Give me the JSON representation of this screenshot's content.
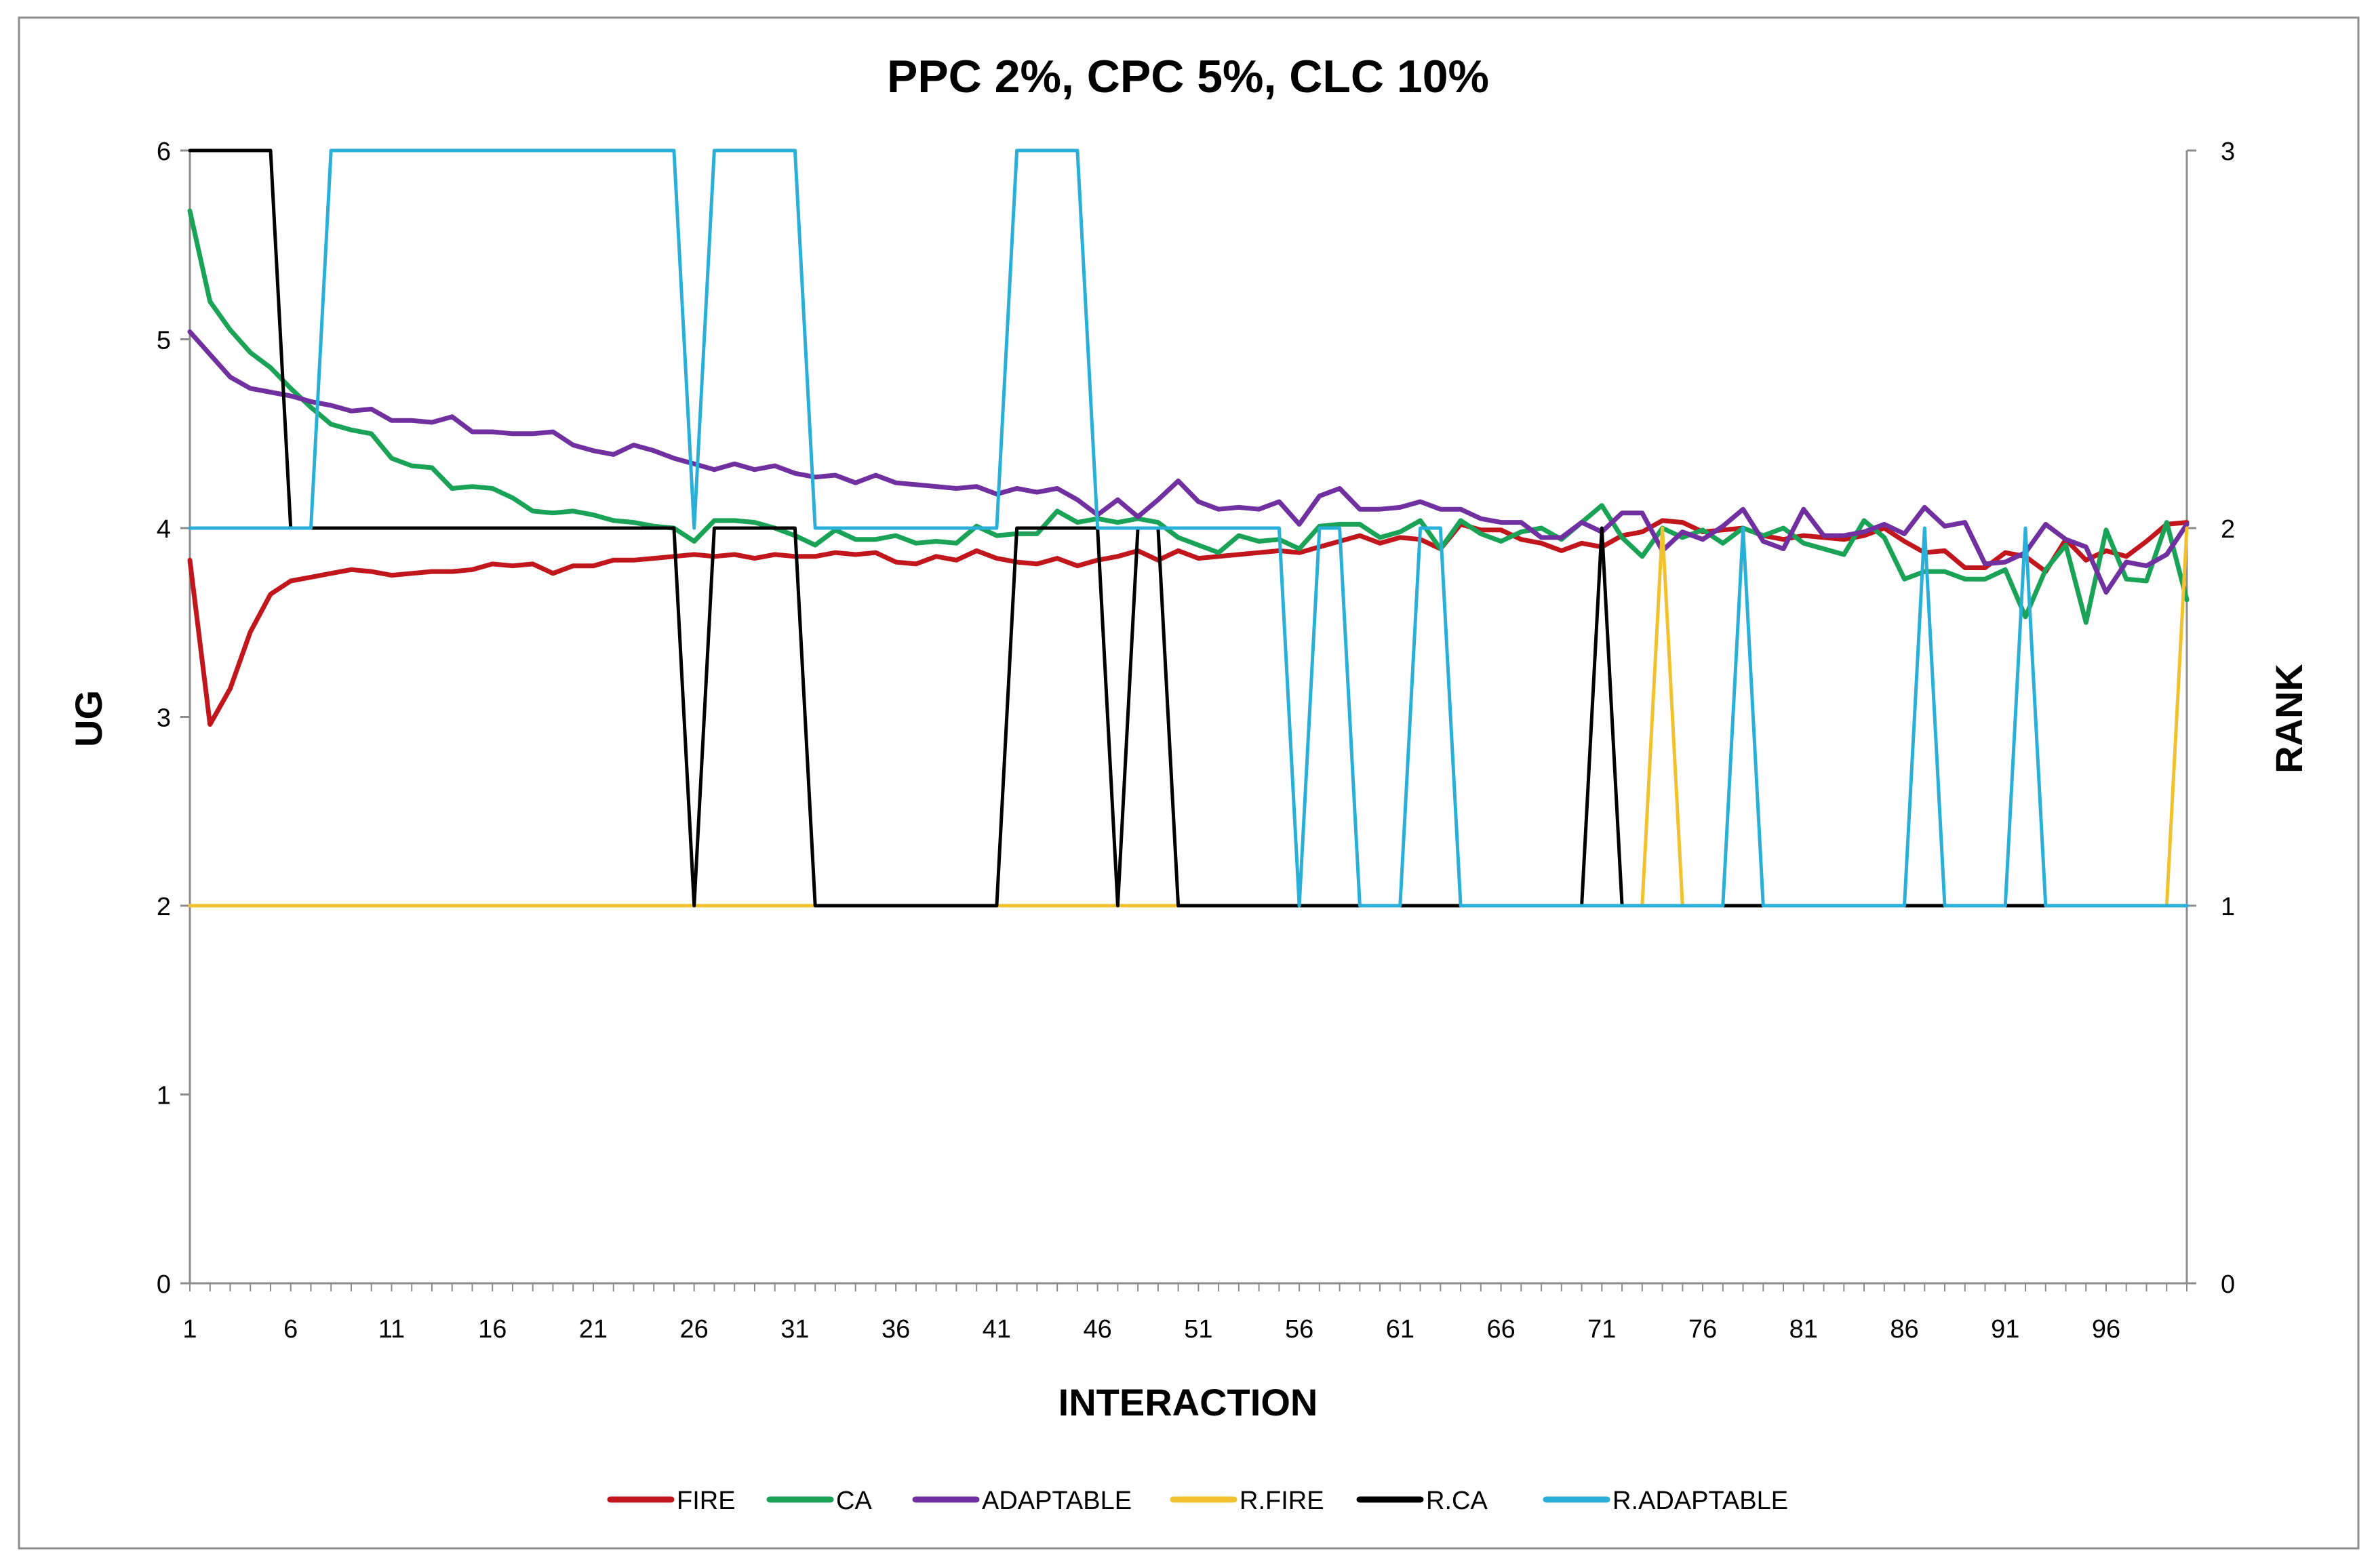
{
  "chart_data": {
    "type": "line",
    "title": "PPC 2%, CPC 5%, CLC 10%",
    "xlabel": "INTERACTION",
    "ylabel": "UG",
    "y2label": "RANK",
    "xlim": [
      1,
      100
    ],
    "ylim": [
      0,
      6
    ],
    "y2lim": [
      0,
      3
    ],
    "yticks": [
      "0",
      "1",
      "2",
      "3",
      "4",
      "5",
      "6"
    ],
    "y2ticks": [
      "0",
      "1",
      "2",
      "3"
    ],
    "xticks": [
      "1",
      "6",
      "11",
      "16",
      "21",
      "26",
      "31",
      "36",
      "41",
      "46",
      "51",
      "56",
      "61",
      "66",
      "71",
      "76",
      "81",
      "86",
      "91",
      "96"
    ],
    "legend_position": "bottom",
    "series": [
      {
        "name": "FIRE",
        "axis": "left",
        "color": "#c0161c",
        "values": [
          3.83,
          2.96,
          3.15,
          3.45,
          3.65,
          3.72,
          3.74,
          3.76,
          3.78,
          3.77,
          3.75,
          3.76,
          3.77,
          3.77,
          3.78,
          3.81,
          3.8,
          3.81,
          3.76,
          3.8,
          3.8,
          3.83,
          3.83,
          3.84,
          3.85,
          3.86,
          3.85,
          3.86,
          3.84,
          3.86,
          3.85,
          3.85,
          3.87,
          3.86,
          3.87,
          3.82,
          3.81,
          3.85,
          3.83,
          3.88,
          3.84,
          3.82,
          3.81,
          3.84,
          3.8,
          3.83,
          3.85,
          3.88,
          3.83,
          3.88,
          3.84,
          3.85,
          3.86,
          3.87,
          3.88,
          3.87,
          3.9,
          3.93,
          3.96,
          3.92,
          3.95,
          3.94,
          3.89,
          4.02,
          3.99,
          3.99,
          3.94,
          3.92,
          3.88,
          3.92,
          3.9,
          3.96,
          3.98,
          4.04,
          4.03,
          3.98,
          3.99,
          4.0,
          3.96,
          3.94,
          3.96,
          3.95,
          3.94,
          3.96,
          4.0,
          3.93,
          3.87,
          3.88,
          3.79,
          3.79,
          3.87,
          3.85,
          3.77,
          3.94,
          3.83,
          3.88,
          3.85,
          3.93,
          4.02,
          4.03
        ]
      },
      {
        "name": "CA",
        "axis": "left",
        "color": "#1aa357",
        "values": [
          5.68,
          5.2,
          5.05,
          4.93,
          4.85,
          4.74,
          4.64,
          4.55,
          4.52,
          4.5,
          4.37,
          4.33,
          4.32,
          4.21,
          4.22,
          4.21,
          4.16,
          4.09,
          4.08,
          4.09,
          4.07,
          4.04,
          4.03,
          4.01,
          4.0,
          3.93,
          4.04,
          4.04,
          4.03,
          4.0,
          3.96,
          3.91,
          3.99,
          3.94,
          3.94,
          3.96,
          3.92,
          3.93,
          3.92,
          4.01,
          3.96,
          3.97,
          3.97,
          4.09,
          4.03,
          4.05,
          4.03,
          4.05,
          4.03,
          3.95,
          3.91,
          3.87,
          3.96,
          3.93,
          3.94,
          3.89,
          4.01,
          4.02,
          4.02,
          3.95,
          3.98,
          4.04,
          3.89,
          4.04,
          3.97,
          3.93,
          3.98,
          4.0,
          3.94,
          4.03,
          4.12,
          3.95,
          3.85,
          4.0,
          3.95,
          3.99,
          3.92,
          4.0,
          3.96,
          4.0,
          3.92,
          3.89,
          3.86,
          4.04,
          3.95,
          3.73,
          3.77,
          3.77,
          3.73,
          3.73,
          3.78,
          3.53,
          3.78,
          3.91,
          3.5,
          3.99,
          3.73,
          3.72,
          4.03,
          3.62
        ]
      },
      {
        "name": "ADAPTABLE",
        "axis": "left",
        "color": "#7030a0",
        "values": [
          5.04,
          4.92,
          4.8,
          4.74,
          4.72,
          4.7,
          4.67,
          4.65,
          4.62,
          4.63,
          4.57,
          4.57,
          4.56,
          4.59,
          4.51,
          4.51,
          4.5,
          4.5,
          4.51,
          4.44,
          4.41,
          4.39,
          4.44,
          4.41,
          4.37,
          4.34,
          4.31,
          4.34,
          4.31,
          4.33,
          4.29,
          4.27,
          4.28,
          4.24,
          4.28,
          4.24,
          4.23,
          4.22,
          4.21,
          4.22,
          4.18,
          4.21,
          4.19,
          4.21,
          4.15,
          4.07,
          4.15,
          4.06,
          4.15,
          4.25,
          4.14,
          4.1,
          4.11,
          4.1,
          4.14,
          4.02,
          4.17,
          4.21,
          4.1,
          4.1,
          4.11,
          4.14,
          4.1,
          4.1,
          4.05,
          4.03,
          4.03,
          3.95,
          3.95,
          4.03,
          3.98,
          4.08,
          4.08,
          3.88,
          3.98,
          3.94,
          4.01,
          4.1,
          3.93,
          3.89,
          4.1,
          3.96,
          3.96,
          3.98,
          4.02,
          3.97,
          4.11,
          4.01,
          4.03,
          3.81,
          3.82,
          3.87,
          4.02,
          3.94,
          3.9,
          3.66,
          3.82,
          3.8,
          3.86,
          4.02
        ]
      },
      {
        "name": "R.FIRE",
        "axis": "right",
        "color": "#f2c12e",
        "values": [
          1,
          1,
          1,
          1,
          1,
          1,
          1,
          1,
          1,
          1,
          1,
          1,
          1,
          1,
          1,
          1,
          1,
          1,
          1,
          1,
          1,
          1,
          1,
          1,
          1,
          1,
          1,
          1,
          1,
          1,
          1,
          1,
          1,
          1,
          1,
          1,
          1,
          1,
          1,
          1,
          1,
          1,
          1,
          1,
          1,
          1,
          1,
          1,
          1,
          1,
          1,
          1,
          1,
          1,
          1,
          1,
          1,
          1,
          1,
          1,
          1,
          1,
          1,
          1,
          1,
          1,
          1,
          1,
          1,
          1,
          1,
          1,
          1,
          2,
          1,
          1,
          1,
          1,
          1,
          1,
          1,
          1,
          1,
          1,
          1,
          1,
          1,
          1,
          1,
          1,
          1,
          1,
          1,
          1,
          1,
          1,
          1,
          1,
          1,
          2
        ]
      },
      {
        "name": "R.CA",
        "axis": "right",
        "color": "#000000",
        "values": [
          3,
          3,
          3,
          3,
          3,
          2,
          2,
          2,
          2,
          2,
          2,
          2,
          2,
          2,
          2,
          2,
          2,
          2,
          2,
          2,
          2,
          2,
          2,
          2,
          2,
          1,
          2,
          2,
          2,
          2,
          2,
          1,
          1,
          1,
          1,
          1,
          1,
          1,
          1,
          1,
          1,
          2,
          2,
          2,
          2,
          2,
          1,
          2,
          2,
          1,
          1,
          1,
          1,
          1,
          1,
          1,
          1,
          1,
          1,
          1,
          1,
          1,
          1,
          1,
          1,
          1,
          1,
          1,
          1,
          1,
          2,
          1,
          1,
          1,
          1,
          1,
          1,
          1,
          1,
          1,
          1,
          1,
          1,
          1,
          1,
          1,
          1,
          1,
          1,
          1,
          1,
          1,
          1,
          1,
          1,
          1,
          1,
          1,
          1,
          1
        ]
      },
      {
        "name": "R.ADAPTABLE",
        "axis": "right",
        "color": "#2ab0d8",
        "values": [
          2,
          2,
          2,
          2,
          2,
          2,
          2,
          3,
          3,
          3,
          3,
          3,
          3,
          3,
          3,
          3,
          3,
          3,
          3,
          3,
          3,
          3,
          3,
          3,
          3,
          2,
          3,
          3,
          3,
          3,
          3,
          2,
          2,
          2,
          2,
          2,
          2,
          2,
          2,
          2,
          2,
          3,
          3,
          3,
          3,
          2,
          2,
          2,
          2,
          2,
          2,
          2,
          2,
          2,
          2,
          1,
          2,
          2,
          1,
          1,
          1,
          2,
          2,
          1,
          1,
          1,
          1,
          1,
          1,
          1,
          1,
          1,
          1,
          1,
          1,
          1,
          1,
          2,
          1,
          1,
          1,
          1,
          1,
          1,
          1,
          1,
          2,
          1,
          1,
          1,
          1,
          2,
          1,
          1,
          1,
          1,
          1,
          1,
          1,
          1
        ]
      }
    ]
  }
}
